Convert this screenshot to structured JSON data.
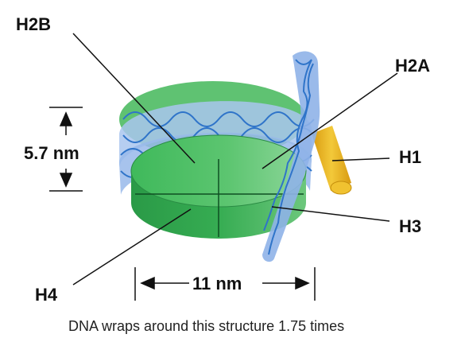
{
  "labels": {
    "h2b": "H2B",
    "h2a": "H2A",
    "h1": "H1",
    "h3": "H3",
    "h4": "H4"
  },
  "dimensions": {
    "height": "5.7 nm",
    "width": "11 nm"
  },
  "caption": "DNA wraps around this structure 1.75 times",
  "colors": {
    "histone_green": "#3db35a",
    "histone_dark": "#1f8a3c",
    "dna_blue": "#8fb3e8",
    "dna_strand": "#2f74c9",
    "h1_yellow": "#e7b41d"
  }
}
